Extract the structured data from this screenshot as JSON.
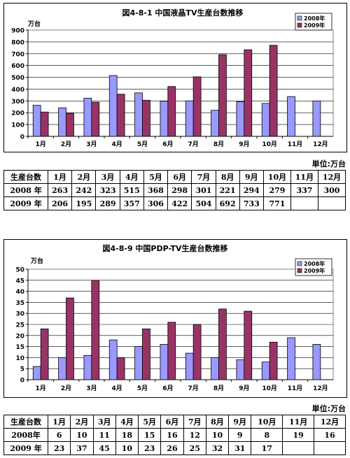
{
  "chart_data": [
    {
      "type": "bar",
      "title": "図4-8-1  中国液晶TV生産台数推移",
      "ylabel": "万台",
      "ylim": [
        0,
        900
      ],
      "yticks": [
        0,
        100,
        200,
        300,
        400,
        500,
        600,
        700,
        800,
        900
      ],
      "categories": [
        "1月",
        "2月",
        "3月",
        "4月",
        "5月",
        "6月",
        "7月",
        "8月",
        "9月",
        "10月",
        "11月",
        "12月"
      ],
      "series": [
        {
          "name": "2008年",
          "color": "#9999ff",
          "values": [
            263,
            242,
            323,
            515,
            368,
            298,
            301,
            221,
            294,
            279,
            337,
            300
          ]
        },
        {
          "name": "2009年",
          "color": "#993366",
          "values": [
            206,
            195,
            289,
            357,
            306,
            422,
            504,
            692,
            733,
            771,
            null,
            null
          ]
        }
      ],
      "legend": "top-right",
      "grid": true
    },
    {
      "type": "bar",
      "title": "図4-8-9  中国PDP-TV生産台数推移",
      "ylabel": "万台",
      "ylim": [
        0,
        50
      ],
      "yticks": [
        0,
        5,
        10,
        15,
        20,
        25,
        30,
        35,
        40,
        45,
        50
      ],
      "categories": [
        "1月",
        "2月",
        "3月",
        "4月",
        "5月",
        "6月",
        "7月",
        "8月",
        "9月",
        "10月",
        "11月",
        "12月"
      ],
      "series": [
        {
          "name": "2008年",
          "color": "#9999ff",
          "values": [
            6,
            10,
            11,
            18,
            15,
            16,
            12,
            10,
            9,
            8,
            19,
            16
          ]
        },
        {
          "name": "2009年",
          "color": "#993366",
          "values": [
            23,
            37,
            45,
            10,
            23,
            26,
            25,
            32,
            31,
            17,
            null,
            null
          ]
        }
      ],
      "legend": "top-right",
      "grid": true
    }
  ],
  "tables": [
    {
      "unit_note": "単位:万台",
      "header": [
        "生産台数",
        "1月",
        "2月",
        "3月",
        "4月",
        "5月",
        "6月",
        "7月",
        "8月",
        "9月",
        "10月",
        "11月",
        "12月"
      ],
      "rows": [
        {
          "label": "2008 年",
          "cells": [
            "263",
            "242",
            "323",
            "515",
            "368",
            "298",
            "301",
            "221",
            "294",
            "279",
            "337",
            "300"
          ]
        },
        {
          "label": "2009 年",
          "cells": [
            "206",
            "195",
            "289",
            "357",
            "306",
            "422",
            "504",
            "692",
            "733",
            "771",
            "",
            ""
          ]
        }
      ]
    },
    {
      "unit_note": "単位:万台",
      "header": [
        "生産台数",
        "1月",
        "2月",
        "3月",
        "4月",
        "5月",
        "6月",
        "7月",
        "8月",
        "9月",
        "10月",
        "11月",
        "12月"
      ],
      "rows": [
        {
          "label": "2008年",
          "cells": [
            "6",
            "10",
            "11",
            "18",
            "15",
            "16",
            "12",
            "10",
            "9",
            "8",
            "19",
            "16"
          ]
        },
        {
          "label": "2009 年",
          "cells": [
            "23",
            "37",
            "45",
            "10",
            "23",
            "26",
            "25",
            "32",
            "31",
            "17",
            "",
            ""
          ]
        }
      ]
    }
  ]
}
